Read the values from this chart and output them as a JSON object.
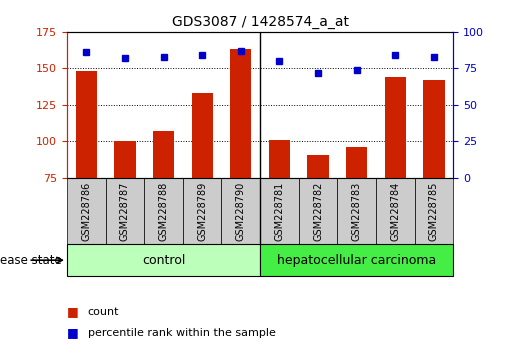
{
  "title": "GDS3087 / 1428574_a_at",
  "samples": [
    "GSM228786",
    "GSM228787",
    "GSM228788",
    "GSM228789",
    "GSM228790",
    "GSM228781",
    "GSM228782",
    "GSM228783",
    "GSM228784",
    "GSM228785"
  ],
  "counts": [
    148,
    100,
    107,
    133,
    163,
    101,
    91,
    96,
    144,
    142
  ],
  "percentiles": [
    86,
    82,
    83,
    84,
    87,
    80,
    72,
    74,
    84,
    83
  ],
  "n_control": 5,
  "n_carcinoma": 5,
  "ylim_left": [
    75,
    175
  ],
  "ylim_right": [
    0,
    100
  ],
  "yticks_left": [
    75,
    100,
    125,
    150,
    175
  ],
  "yticks_right": [
    0,
    25,
    50,
    75,
    100
  ],
  "bar_color": "#cc2200",
  "dot_color": "#0000cc",
  "control_color": "#bbffbb",
  "carcinoma_color": "#44ee44",
  "tick_bg_color": "#cccccc",
  "grid_color": "black",
  "disease_state_label": "disease state",
  "control_label": "control",
  "carcinoma_label": "hepatocellular carcinoma",
  "legend_count": "count",
  "legend_pct": "percentile rank within the sample",
  "legend_count_color": "#cc2200",
  "legend_pct_color": "#0000cc"
}
